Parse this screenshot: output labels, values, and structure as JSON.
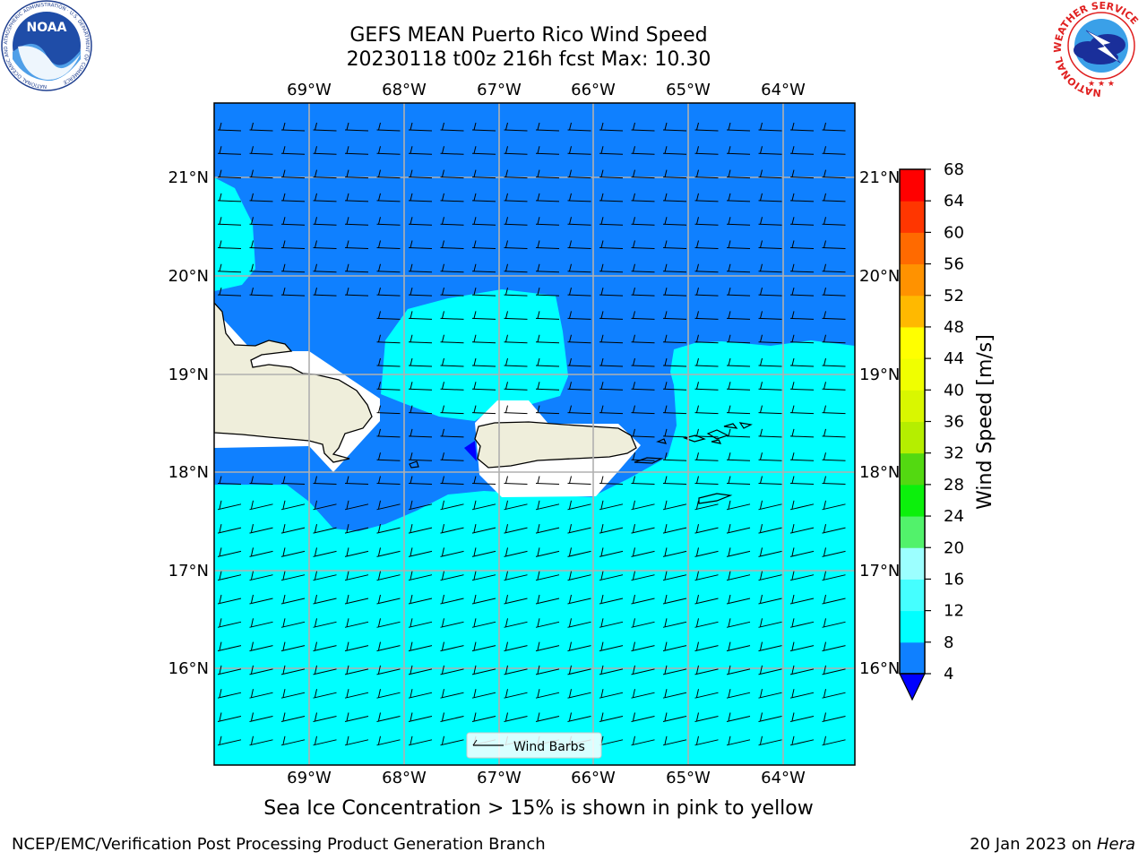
{
  "header": {
    "title_line1": "GEFS MEAN Puerto Rico Wind Speed",
    "title_line2": "20230118 t00z 216h fcst   Max: 10.30"
  },
  "logos": {
    "noaa_text": "NOAA",
    "noaa_ring_text": "NATIONAL OCEANIC AND ATMOSPHERIC ADMINISTRATION · U.S. DEPARTMENT OF COMMERCE",
    "nws_ring_text": "NATIONAL WEATHER SERVICE"
  },
  "map": {
    "lon_labels": [
      "69°W",
      "68°W",
      "67°W",
      "66°W",
      "65°W",
      "64°W"
    ],
    "lat_labels": [
      "21°N",
      "20°N",
      "19°N",
      "18°N",
      "17°N",
      "16°N"
    ],
    "legend_label": "Wind Barbs",
    "colors": {
      "ocean_low": "#0f80ff",
      "ocean_mid": "#00ffff",
      "land": "#efeedb",
      "grid": "#b0b0b0"
    }
  },
  "colorbar": {
    "label": "Wind Speed [m/s]",
    "ticks": [
      "4",
      "8",
      "12",
      "16",
      "20",
      "24",
      "28",
      "32",
      "36",
      "40",
      "44",
      "48",
      "52",
      "56",
      "60",
      "64",
      "68"
    ],
    "colors": [
      "#0f80ff",
      "#00ffff",
      "#45ffff",
      "#9cffff",
      "#52f26b",
      "#0cf00c",
      "#53d911",
      "#b5ee00",
      "#d9f700",
      "#f0ff00",
      "#ffff00",
      "#ffb900",
      "#ff9200",
      "#ff6a00",
      "#ff3600",
      "#ff0000"
    ],
    "under_color": "#0000ff"
  },
  "caption": "Sea Ice Concentration > 15% is shown in pink to yellow",
  "footer": {
    "left": "NCEP/EMC/Verification Post Processing Product Generation Branch",
    "date": "20 Jan 2023 on",
    "machine": "Hera"
  }
}
